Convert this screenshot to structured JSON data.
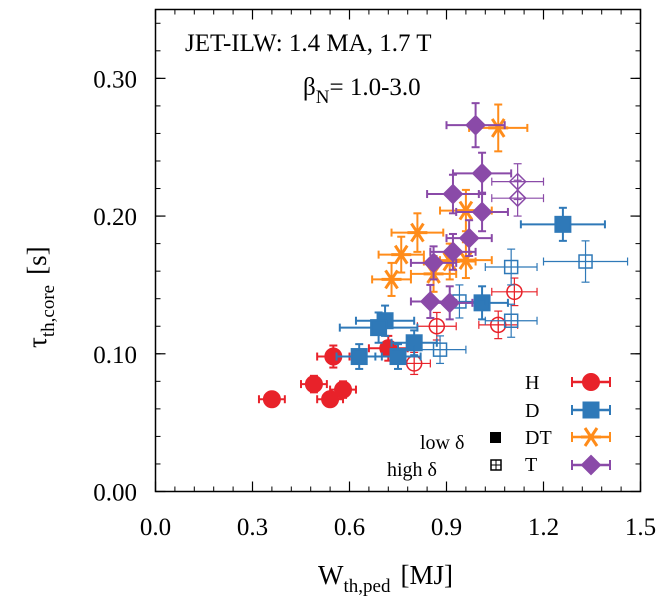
{
  "chart_data": {
    "type": "scatter",
    "title": [
      "JET-ILW: 1.4 MA, 1.7 T",
      "β",
      "N",
      "= 1.0-3.0"
    ],
    "xlabel": {
      "main": "W",
      "sub": "th,ped",
      "unit": "[MJ]"
    },
    "ylabel": {
      "main": "τ",
      "sub": "th,core",
      "unit": "[s]"
    },
    "xlim": [
      0.0,
      1.5
    ],
    "ylim": [
      0.0,
      0.35
    ],
    "xticks": [
      "0.0",
      "0.3",
      "0.6",
      "0.9",
      "1.2",
      "1.5"
    ],
    "yticks": [
      "0.00",
      "0.10",
      "0.20",
      "0.30"
    ],
    "legend": {
      "placement": "bottom-right",
      "style_labels": [
        "low δ",
        "high δ"
      ],
      "style_keys": [
        "filled",
        "open"
      ]
    },
    "series": [
      {
        "name": "H",
        "color": "#e8222a",
        "marker": "circle",
        "points": [
          {
            "x": 0.36,
            "y": 0.067,
            "xerr": 0.04,
            "yerr": 0.005,
            "fill": "filled"
          },
          {
            "x": 0.49,
            "y": 0.078,
            "xerr": 0.04,
            "yerr": 0.006,
            "fill": "filled"
          },
          {
            "x": 0.54,
            "y": 0.067,
            "xerr": 0.04,
            "yerr": 0.005,
            "fill": "filled"
          },
          {
            "x": 0.58,
            "y": 0.074,
            "xerr": 0.04,
            "yerr": 0.006,
            "fill": "filled"
          },
          {
            "x": 0.55,
            "y": 0.098,
            "xerr": 0.05,
            "yerr": 0.008,
            "fill": "filled"
          },
          {
            "x": 0.72,
            "y": 0.104,
            "xerr": 0.06,
            "yerr": 0.009,
            "fill": "filled"
          },
          {
            "x": 0.8,
            "y": 0.093,
            "xerr": 0.05,
            "yerr": 0.008,
            "fill": "open"
          },
          {
            "x": 0.87,
            "y": 0.12,
            "xerr": 0.06,
            "yerr": 0.01,
            "fill": "open"
          },
          {
            "x": 1.06,
            "y": 0.121,
            "xerr": 0.06,
            "yerr": 0.01,
            "fill": "open"
          },
          {
            "x": 1.11,
            "y": 0.145,
            "xerr": 0.07,
            "yerr": 0.01,
            "fill": "open"
          }
        ]
      },
      {
        "name": "D",
        "color": "#2f79b8",
        "marker": "square",
        "points": [
          {
            "x": 0.63,
            "y": 0.098,
            "xerr": 0.07,
            "yerr": 0.009,
            "fill": "filled"
          },
          {
            "x": 0.71,
            "y": 0.124,
            "xerr": 0.09,
            "yerr": 0.011,
            "fill": "filled"
          },
          {
            "x": 0.69,
            "y": 0.119,
            "xerr": 0.12,
            "yerr": 0.011,
            "fill": "filled"
          },
          {
            "x": 0.75,
            "y": 0.098,
            "xerr": 0.07,
            "yerr": 0.009,
            "fill": "filled"
          },
          {
            "x": 0.8,
            "y": 0.108,
            "xerr": 0.07,
            "yerr": 0.009,
            "fill": "filled"
          },
          {
            "x": 1.01,
            "y": 0.137,
            "xerr": 0.08,
            "yerr": 0.012,
            "fill": "filled"
          },
          {
            "x": 1.26,
            "y": 0.194,
            "xerr": 0.13,
            "yerr": 0.012,
            "fill": "filled"
          },
          {
            "x": 0.88,
            "y": 0.103,
            "xerr": 0.08,
            "yerr": 0.01,
            "fill": "open"
          },
          {
            "x": 0.94,
            "y": 0.138,
            "xerr": 0.08,
            "yerr": 0.012,
            "fill": "open"
          },
          {
            "x": 1.1,
            "y": 0.124,
            "xerr": 0.08,
            "yerr": 0.012,
            "fill": "open"
          },
          {
            "x": 1.1,
            "y": 0.163,
            "xerr": 0.08,
            "yerr": 0.013,
            "fill": "open"
          },
          {
            "x": 1.33,
            "y": 0.167,
            "xerr": 0.13,
            "yerr": 0.015,
            "fill": "open"
          }
        ]
      },
      {
        "name": "DT",
        "color": "#ff8c1a",
        "marker": "star",
        "points": [
          {
            "x": 0.73,
            "y": 0.154,
            "xerr": 0.06,
            "yerr": 0.012,
            "fill": "filled"
          },
          {
            "x": 0.76,
            "y": 0.172,
            "xerr": 0.07,
            "yerr": 0.013,
            "fill": "filled"
          },
          {
            "x": 0.81,
            "y": 0.188,
            "xerr": 0.08,
            "yerr": 0.014,
            "fill": "filled"
          },
          {
            "x": 0.86,
            "y": 0.158,
            "xerr": 0.07,
            "yerr": 0.013,
            "fill": "filled"
          },
          {
            "x": 0.91,
            "y": 0.167,
            "xerr": 0.08,
            "yerr": 0.013,
            "fill": "filled"
          },
          {
            "x": 0.96,
            "y": 0.168,
            "xerr": 0.08,
            "yerr": 0.013,
            "fill": "filled"
          },
          {
            "x": 0.96,
            "y": 0.204,
            "xerr": 0.08,
            "yerr": 0.015,
            "fill": "filled"
          },
          {
            "x": 1.06,
            "y": 0.264,
            "xerr": 0.09,
            "yerr": 0.017,
            "fill": "filled"
          }
        ]
      },
      {
        "name": "T",
        "color": "#8a4aa8",
        "marker": "diamond",
        "points": [
          {
            "x": 0.85,
            "y": 0.138,
            "xerr": 0.06,
            "yerr": 0.012,
            "fill": "filled"
          },
          {
            "x": 0.86,
            "y": 0.166,
            "xerr": 0.07,
            "yerr": 0.012,
            "fill": "filled"
          },
          {
            "x": 0.92,
            "y": 0.174,
            "xerr": 0.07,
            "yerr": 0.013,
            "fill": "filled"
          },
          {
            "x": 0.97,
            "y": 0.184,
            "xerr": 0.07,
            "yerr": 0.013,
            "fill": "filled"
          },
          {
            "x": 0.92,
            "y": 0.216,
            "xerr": 0.08,
            "yerr": 0.014,
            "fill": "filled"
          },
          {
            "x": 1.01,
            "y": 0.203,
            "xerr": 0.08,
            "yerr": 0.014,
            "fill": "filled"
          },
          {
            "x": 1.01,
            "y": 0.231,
            "xerr": 0.09,
            "yerr": 0.015,
            "fill": "filled"
          },
          {
            "x": 0.99,
            "y": 0.266,
            "xerr": 0.09,
            "yerr": 0.016,
            "fill": "filled"
          },
          {
            "x": 0.91,
            "y": 0.137,
            "xerr": 0.07,
            "yerr": 0.012,
            "fill": "filled"
          },
          {
            "x": 1.12,
            "y": 0.225,
            "xerr": 0.08,
            "yerr": 0.013,
            "fill": "open"
          },
          {
            "x": 1.12,
            "y": 0.213,
            "xerr": 0.08,
            "yerr": 0.013,
            "fill": "open"
          }
        ]
      }
    ]
  }
}
